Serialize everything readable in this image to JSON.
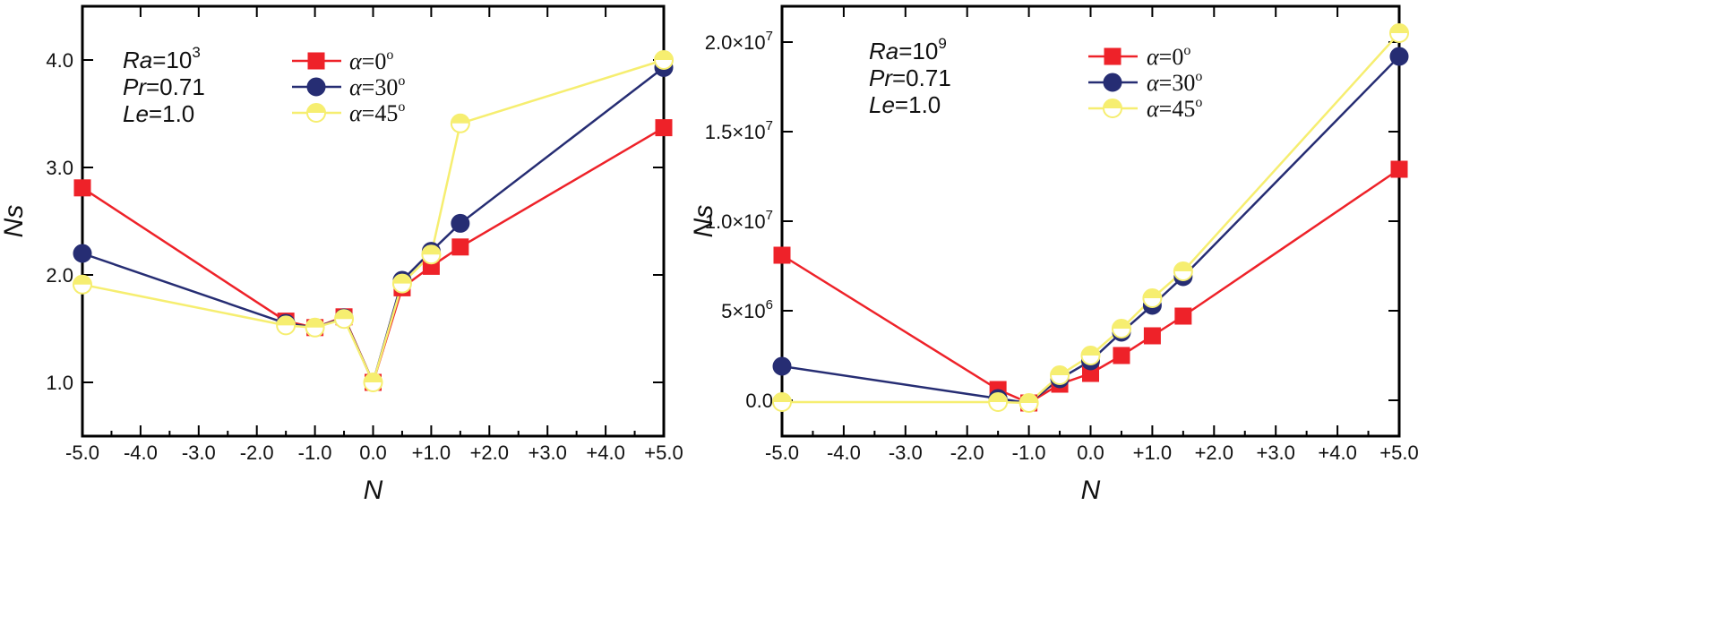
{
  "chart_data": [
    {
      "type": "line",
      "xlabel": "N",
      "ylabel": "Ns",
      "xlim": [
        -5.0,
        5.0
      ],
      "ylim": [
        0.5,
        4.5
      ],
      "xticks": [
        -5,
        -4,
        -3,
        -2,
        -1,
        0,
        1,
        2,
        3,
        4,
        5
      ],
      "xtick_labels": [
        "-5.0",
        "-4.0",
        "-3.0",
        "-2.0",
        "-1.0",
        "0.0",
        "+1.0",
        "+2.0",
        "+3.0",
        "+4.0",
        "+5.0"
      ],
      "yticks": [
        1.0,
        2.0,
        3.0,
        4.0
      ],
      "ytick_labels": [
        "1.0",
        "2.0",
        "3.0",
        "4.0"
      ],
      "annotations": {
        "ra_name": "Ra",
        "ra_value": "=10",
        "ra_exp": "3",
        "pr_name": "Pr",
        "pr_value": "=0.71",
        "le_name": "Le",
        "le_value": "=1.0"
      },
      "series": [
        {
          "name": "α=0º",
          "legend_alpha": "α",
          "legend_value": "=0",
          "legend_deg": "o",
          "color": "#ee2229",
          "marker": "square",
          "x": [
            -5.0,
            -1.5,
            -1.0,
            -0.5,
            0.0,
            0.5,
            1.0,
            1.5,
            5.0
          ],
          "y": [
            2.81,
            1.57,
            1.51,
            1.61,
            1.0,
            1.88,
            2.08,
            2.26,
            3.37
          ]
        },
        {
          "name": "α=30º",
          "legend_alpha": "α",
          "legend_value": "=30",
          "legend_deg": "o",
          "color": "#262d73",
          "marker": "circle",
          "x": [
            -5.0,
            -1.5,
            -1.0,
            -0.5,
            0.0,
            0.5,
            1.0,
            1.5,
            5.0
          ],
          "y": [
            2.2,
            1.55,
            1.51,
            1.6,
            1.0,
            1.95,
            2.22,
            2.48,
            3.93
          ]
        },
        {
          "name": "α=45º",
          "legend_alpha": "α",
          "legend_value": "=45",
          "legend_deg": "o",
          "color": "#f6ee70",
          "marker": "half-circle",
          "x": [
            -5.0,
            -1.5,
            -1.0,
            -0.5,
            0.0,
            0.5,
            1.0,
            1.5,
            5.0
          ],
          "y": [
            1.91,
            1.53,
            1.51,
            1.59,
            1.0,
            1.92,
            2.19,
            3.41,
            4.0
          ]
        }
      ]
    },
    {
      "type": "line",
      "xlabel": "N",
      "ylabel": "Ns",
      "xlim": [
        -5.0,
        5.0
      ],
      "ylim": [
        -2000000,
        22000000
      ],
      "xticks": [
        -5,
        -4,
        -3,
        -2,
        -1,
        0,
        1,
        2,
        3,
        4,
        5
      ],
      "xtick_labels": [
        "-5.0",
        "-4.0",
        "-3.0",
        "-2.0",
        "-1.0",
        "0.0",
        "+1.0",
        "+2.0",
        "+3.0",
        "+4.0",
        "+5.0"
      ],
      "yticks": [
        0,
        5000000,
        10000000,
        15000000,
        20000000
      ],
      "ytick_labels": [
        "0.0",
        "5×10",
        "1.0×10",
        "1.5×10",
        "2.0×10"
      ],
      "ytick_exps": [
        "",
        "6",
        "7",
        "7",
        "7"
      ],
      "annotations": {
        "ra_name": "Ra",
        "ra_value": "=10",
        "ra_exp": "9",
        "pr_name": "Pr",
        "pr_value": "=0.71",
        "le_name": "Le",
        "le_value": "=1.0"
      },
      "series": [
        {
          "name": "α=0º",
          "legend_alpha": "α",
          "legend_value": "=0",
          "legend_deg": "o",
          "color": "#ee2229",
          "marker": "square",
          "x": [
            -5.0,
            -1.5,
            -1.0,
            -0.5,
            0.0,
            0.5,
            1.0,
            1.5,
            5.0
          ],
          "y": [
            8100000,
            600000,
            -150000,
            900000,
            1500000,
            2500000,
            3600000,
            4700000,
            12900000
          ]
        },
        {
          "name": "α=30º",
          "legend_alpha": "α",
          "legend_value": "=30",
          "legend_deg": "o",
          "color": "#262d73",
          "marker": "circle",
          "x": [
            -5.0,
            -1.5,
            -1.0,
            -0.5,
            0.0,
            0.5,
            1.0,
            1.5,
            5.0
          ],
          "y": [
            1900000,
            100000,
            -150000,
            1200000,
            2200000,
            3800000,
            5300000,
            6900000,
            19200000
          ]
        },
        {
          "name": "α=45º",
          "legend_alpha": "α",
          "legend_value": "=45",
          "legend_deg": "o",
          "color": "#f6ee70",
          "marker": "half-circle",
          "x": [
            -5.0,
            -1.5,
            -1.0,
            -0.5,
            0.0,
            0.5,
            1.0,
            1.5,
            5.0
          ],
          "y": [
            -100000,
            -100000,
            -150000,
            1400000,
            2500000,
            4000000,
            5700000,
            7200000,
            20500000
          ]
        }
      ]
    }
  ]
}
